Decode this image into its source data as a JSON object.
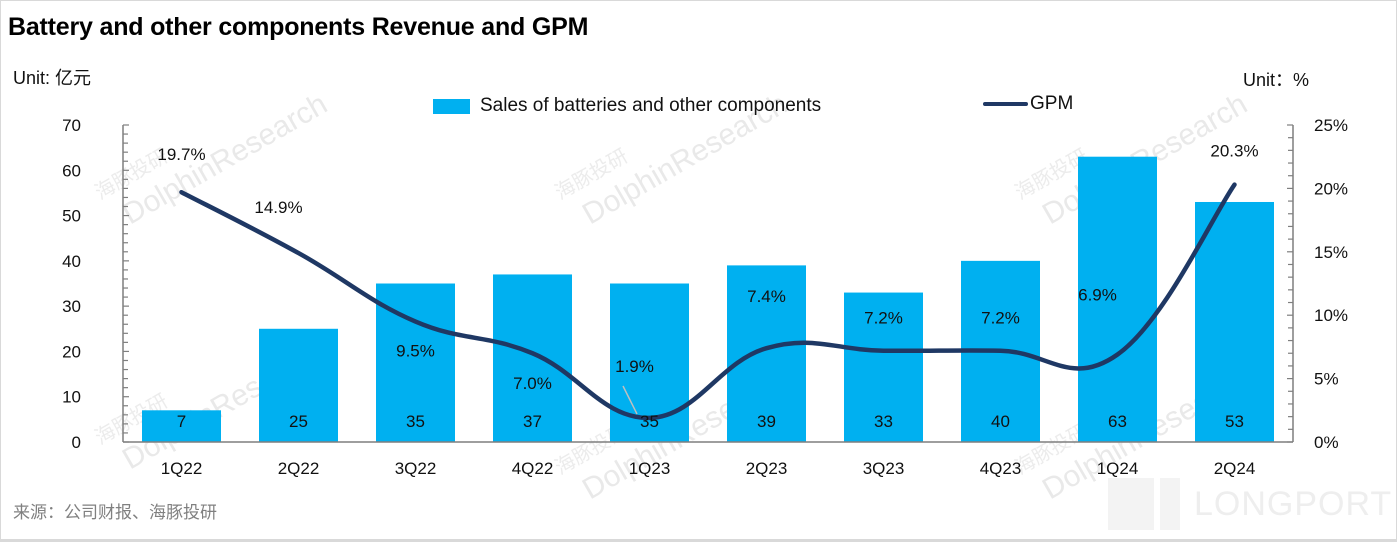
{
  "title": "Battery and other components Revenue and GPM",
  "unit_left": "Unit: 亿元",
  "unit_right": "Unit：%",
  "source": "来源：公司财报、海豚投研",
  "watermark": {
    "text": "DolphinResearch",
    "text_cn": "海豚投研",
    "brand": "LONGPORT"
  },
  "colors": {
    "bar": "#00B0F0",
    "line": "#1F3864",
    "axis": "#7f7f7f",
    "leader": "#bfbfbf"
  },
  "legend": {
    "bar_label": "Sales of batteries and other components",
    "line_label": "GPM",
    "position": "top-center"
  },
  "chart_data": {
    "type": "bar",
    "title": "Battery and other components Revenue and GPM",
    "categories": [
      "1Q22",
      "2Q22",
      "3Q22",
      "4Q22",
      "1Q23",
      "2Q23",
      "3Q23",
      "4Q23",
      "1Q24",
      "2Q24"
    ],
    "series": [
      {
        "name": "Sales of batteries and other components",
        "type": "bar",
        "axis": "left",
        "values": [
          7,
          25,
          35,
          37,
          35,
          39,
          33,
          40,
          63,
          53
        ],
        "labels": [
          "7",
          "25",
          "35",
          "37",
          "35",
          "39",
          "33",
          "40",
          "63",
          "53"
        ]
      },
      {
        "name": "GPM",
        "type": "line",
        "smooth": true,
        "axis": "right",
        "values": [
          19.7,
          14.9,
          9.5,
          7.0,
          1.9,
          7.4,
          7.2,
          7.2,
          6.9,
          20.3
        ],
        "labels": [
          "19.7%",
          "14.9%",
          "9.5%",
          "7.0%",
          "1.9%",
          "7.4%",
          "7.2%",
          "7.2%",
          "6.9%",
          "20.3%"
        ]
      }
    ],
    "y_left": {
      "label": "Unit: 亿元",
      "range": [
        0,
        70
      ],
      "ticks": [
        0,
        10,
        20,
        30,
        40,
        50,
        60,
        70
      ],
      "tick_labels": [
        "0",
        "10",
        "20",
        "30",
        "40",
        "50",
        "60",
        "70"
      ]
    },
    "y_right": {
      "label": "Unit：%",
      "range": [
        0,
        25
      ],
      "ticks": [
        0,
        5,
        10,
        15,
        20,
        25
      ],
      "tick_labels": [
        "0%",
        "5%",
        "10%",
        "15%",
        "20%",
        "25%"
      ]
    },
    "grid": false,
    "legend": "top-center"
  }
}
